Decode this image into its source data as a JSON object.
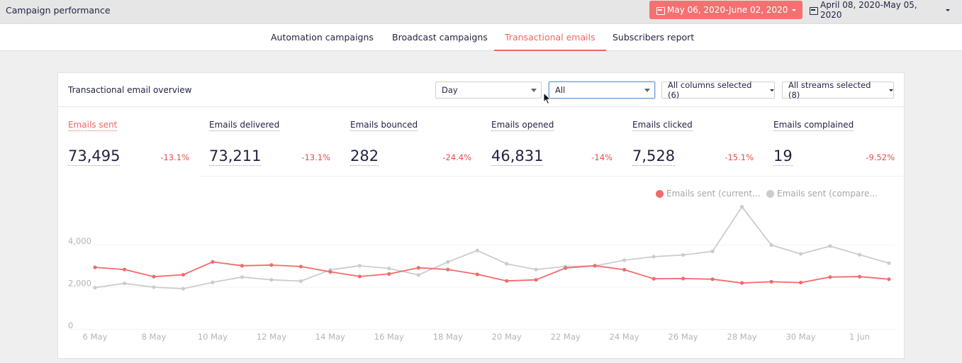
{
  "header": {
    "title": "Campaign performance",
    "date_current": "May 06, 2020-June 02, 2020",
    "date_compare": "April 08, 2020-May 05, 2020",
    "accent_color": "#f47171"
  },
  "nav": {
    "tabs": [
      {
        "label": "Automation campaigns",
        "active": false
      },
      {
        "label": "Broadcast campaigns",
        "active": false
      },
      {
        "label": "Transactional emails",
        "active": true
      },
      {
        "label": "Subscribers report",
        "active": false
      }
    ]
  },
  "overview": {
    "title": "Transactional email overview",
    "filters": {
      "interval": "Day",
      "scope": "All",
      "columns": "All columns selected (6)",
      "streams": "All streams selected (8)"
    },
    "metrics": [
      {
        "label": "Emails sent",
        "value": "73,495",
        "change": "-13.1%"
      },
      {
        "label": "Emails delivered",
        "value": "73,211",
        "change": "-13.1%"
      },
      {
        "label": "Emails bounced",
        "value": "282",
        "change": "-24.4%"
      },
      {
        "label": "Emails opened",
        "value": "46,831",
        "change": "-14%"
      },
      {
        "label": "Emails clicked",
        "value": "7,528",
        "change": "-15.1%"
      },
      {
        "label": "Emails complained",
        "value": "19",
        "change": "-9.52%"
      }
    ]
  },
  "chart_data": {
    "type": "line",
    "x": [
      "6 May",
      "7 May",
      "8 May",
      "9 May",
      "10 May",
      "11 May",
      "12 May",
      "13 May",
      "14 May",
      "15 May",
      "16 May",
      "17 May",
      "18 May",
      "19 May",
      "20 May",
      "21 May",
      "22 May",
      "23 May",
      "24 May",
      "25 May",
      "26 May",
      "27 May",
      "28 May",
      "29 May",
      "30 May",
      "31 May",
      "1 Jun",
      "2 Jun"
    ],
    "x_tick_labels": [
      "6 May",
      "8 May",
      "10 May",
      "12 May",
      "14 May",
      "16 May",
      "18 May",
      "20 May",
      "22 May",
      "24 May",
      "26 May",
      "28 May",
      "30 May",
      "1 Jun"
    ],
    "y_tick_labels": [
      "0",
      "2,000",
      "4,000"
    ],
    "ylim": [
      0,
      6000
    ],
    "grid": true,
    "legend_position": "top-right",
    "series": [
      {
        "name": "Emails sent (current...",
        "color": "#f46a6a",
        "values": [
          2920,
          2820,
          2480,
          2570,
          3180,
          3000,
          3030,
          2960,
          2710,
          2490,
          2610,
          2900,
          2820,
          2590,
          2280,
          2330,
          2890,
          3000,
          2810,
          2380,
          2390,
          2360,
          2180,
          2240,
          2200,
          2460,
          2480,
          2360
        ]
      },
      {
        "name": "Emails sent (compare...",
        "color": "#cccccc",
        "values": [
          1960,
          2160,
          1980,
          1910,
          2210,
          2460,
          2330,
          2270,
          2800,
          3000,
          2870,
          2560,
          3180,
          3720,
          3090,
          2820,
          2960,
          2990,
          3260,
          3430,
          3510,
          3680,
          5790,
          3980,
          3560,
          3930,
          3520,
          3120
        ]
      }
    ]
  }
}
